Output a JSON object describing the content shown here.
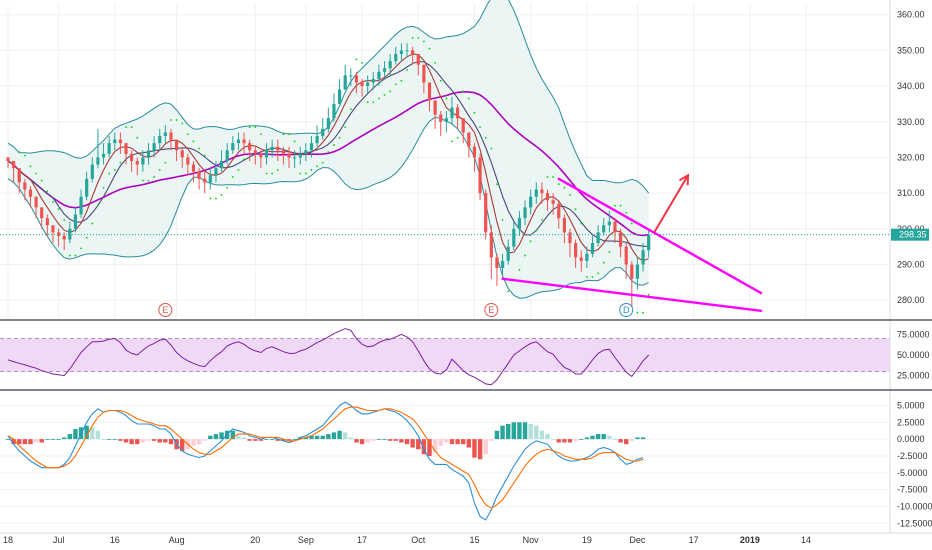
{
  "chart_data": [
    {
      "type": "candlestick",
      "panel": "price",
      "y_ticks": [
        "360.00",
        "350.00",
        "340.00",
        "330.00",
        "320.00",
        "310.00",
        "300.00",
        "290.00",
        "280.00"
      ],
      "ylim": [
        275,
        363
      ],
      "last_price_label": "298.35",
      "last_price": 298.35,
      "x_labels": [
        "18",
        "Jul",
        "16",
        "Aug",
        "20",
        "Sep",
        "17",
        "Oct",
        "15",
        "Nov",
        "19",
        "Dec",
        "17",
        "2019",
        "14"
      ],
      "x_label_day_index": [
        0,
        9,
        19,
        30,
        44,
        53,
        63,
        73,
        83,
        93,
        103,
        112,
        122,
        132,
        142
      ],
      "close": [
        319.0,
        317.0,
        313.0,
        311.0,
        309.0,
        306.0,
        303.0,
        301.0,
        299.0,
        298.0,
        297.0,
        300.0,
        304.0,
        309.0,
        314.0,
        318.0,
        320.0,
        321.0,
        324.0,
        325.0,
        324.0,
        321.0,
        319.0,
        318.0,
        320.0,
        322.0,
        324.0,
        326.0,
        327.0,
        325.0,
        322.0,
        320.0,
        318.0,
        316.0,
        314.0,
        313.0,
        315.0,
        317.0,
        319.0,
        322.0,
        324.0,
        325.0,
        324.0,
        322.0,
        321.0,
        320.0,
        322.0,
        323.0,
        322.0,
        321.0,
        320.0,
        320.0,
        321.0,
        322.0,
        324.0,
        326.0,
        328.0,
        331.0,
        335.0,
        339.0,
        343.0,
        343.0,
        341.0,
        340.0,
        341.0,
        342.0,
        344.0,
        345.0,
        347.0,
        349.0,
        350.0,
        350.0,
        349.0,
        346.0,
        341.0,
        336.0,
        332.0,
        330.0,
        331.0,
        334.0,
        331.0,
        327.0,
        323.0,
        320.0,
        310.0,
        299.0,
        292.0,
        289.0,
        291.0,
        295.0,
        300.0,
        303.0,
        306.0,
        309.0,
        311.0,
        310.0,
        308.0,
        307.0,
        303.0,
        299.0,
        296.0,
        292.0,
        291.0,
        293.0,
        296.0,
        299.0,
        301.0,
        302.0,
        299.0,
        295.0,
        290.0,
        286.0,
        290.0,
        294.0,
        298.35
      ],
      "high": [
        320.0,
        319.0,
        316.0,
        314.0,
        312.0,
        309.0,
        306.0,
        304.0,
        301.0,
        300.0,
        299.0,
        302.0,
        306.0,
        311.0,
        316.0,
        320.0,
        328.0,
        324.0,
        326.0,
        327.0,
        327.0,
        324.0,
        322.0,
        320.0,
        322.0,
        324.0,
        326.0,
        328.0,
        329.0,
        328.0,
        325.0,
        323.0,
        321.0,
        319.0,
        317.0,
        316.0,
        317.0,
        319.0,
        322.0,
        324.0,
        326.0,
        327.0,
        327.0,
        325.0,
        323.0,
        322.0,
        324.0,
        325.0,
        325.0,
        323.0,
        323.0,
        322.0,
        323.0,
        324.0,
        326.0,
        329.0,
        331.0,
        334.0,
        338.0,
        342.0,
        346.0,
        345.0,
        344.0,
        342.0,
        343.0,
        344.0,
        346.0,
        347.0,
        349.0,
        351.0,
        352.0,
        352.0,
        351.0,
        349.0,
        345.0,
        340.0,
        335.0,
        333.0,
        333.0,
        337.0,
        335.0,
        331.0,
        327.0,
        324.0,
        321.0,
        311.0,
        301.0,
        293.0,
        293.0,
        297.0,
        302.0,
        305.0,
        308.0,
        311.0,
        313.0,
        313.0,
        311.0,
        310.0,
        308.0,
        304.0,
        300.0,
        297.0,
        294.0,
        295.0,
        298.0,
        301.0,
        303.0,
        305.0,
        303.0,
        300.0,
        296.0,
        291.0,
        292.0,
        296.0,
        300.0
      ],
      "low": [
        317.0,
        313.0,
        310.0,
        308.0,
        306.0,
        303.0,
        300.0,
        298.0,
        296.0,
        295.0,
        294.0,
        296.0,
        299.0,
        303.0,
        308.0,
        313.0,
        317.0,
        318.0,
        320.0,
        322.0,
        321.0,
        318.0,
        316.0,
        315.0,
        316.0,
        318.0,
        320.0,
        322.0,
        324.0,
        322.0,
        319.0,
        317.0,
        315.0,
        313.0,
        311.0,
        310.0,
        311.0,
        313.0,
        316.0,
        318.0,
        321.0,
        322.0,
        321.0,
        319.0,
        318.0,
        317.0,
        318.0,
        320.0,
        319.0,
        318.0,
        317.0,
        317.0,
        318.0,
        319.0,
        320.0,
        323.0,
        325.0,
        327.0,
        330.0,
        335.0,
        339.0,
        340.0,
        338.0,
        337.0,
        338.0,
        339.0,
        340.0,
        342.0,
        343.0,
        346.0,
        347.0,
        348.0,
        346.0,
        343.0,
        338.0,
        333.0,
        328.0,
        326.0,
        327.0,
        329.0,
        328.0,
        324.0,
        320.0,
        316.0,
        308.0,
        297.0,
        286.0,
        284.0,
        287.0,
        290.0,
        294.0,
        298.0,
        301.0,
        304.0,
        307.0,
        307.0,
        305.0,
        304.0,
        300.0,
        296.0,
        292.0,
        289.0,
        288.0,
        289.0,
        292.0,
        295.0,
        298.0,
        299.0,
        296.0,
        292.0,
        286.0,
        278.0,
        283.0,
        288.0,
        292.0
      ],
      "open_first": 320.0,
      "events": [
        {
          "label": "E",
          "day": 28,
          "color": "#e0564f"
        },
        {
          "label": "E",
          "day": 86,
          "color": "#e0564f"
        },
        {
          "label": "D",
          "day": 110,
          "color": "#2f8fd0"
        }
      ],
      "trendlines": [
        {
          "color": "#ff00ff",
          "p1": {
            "day": 98,
            "price": 314
          },
          "p2": {
            "day": 134,
            "price": 282
          }
        },
        {
          "color": "#ff00ff",
          "p1": {
            "day": 88,
            "price": 286
          },
          "p2": {
            "day": 134,
            "price": 277
          }
        }
      ],
      "arrow": {
        "color": "#f23645",
        "p1": {
          "day": 115,
          "price": 299
        },
        "p2": {
          "day": 121,
          "price": 315
        }
      },
      "colors": {
        "up": "#26a69a",
        "down": "#ef5350",
        "band": "#2a8c9c",
        "band_fill": "#e6f4f1",
        "ma_slow": "#b000c0",
        "ma_fast": "#a83a3a",
        "ma_mid": "#4a4a7a",
        "psar": "#00d400",
        "last_price_bg": "#26a69a"
      }
    },
    {
      "type": "line",
      "panel": "rsi",
      "y_ticks": [
        "75.0000",
        "50.0000",
        "25.0000"
      ],
      "ylim": [
        10,
        90
      ],
      "bands": [
        30,
        70
      ],
      "values": [
        44,
        42,
        40,
        38,
        36,
        34,
        31,
        29,
        27,
        26,
        25,
        33,
        43,
        53,
        60,
        66,
        66,
        67,
        69,
        70,
        65,
        56,
        52,
        50,
        56,
        61,
        64,
        68,
        69,
        62,
        53,
        47,
        43,
        40,
        37,
        36,
        43,
        49,
        54,
        61,
        64,
        66,
        63,
        58,
        55,
        53,
        58,
        60,
        57,
        54,
        52,
        52,
        55,
        57,
        61,
        65,
        68,
        72,
        76,
        79,
        82,
        80,
        70,
        63,
        60,
        61,
        65,
        68,
        69,
        72,
        75,
        72,
        66,
        55,
        43,
        33,
        28,
        27,
        32,
        45,
        38,
        31,
        26,
        23,
        19,
        15,
        14,
        20,
        30,
        40,
        50,
        55,
        60,
        64,
        66,
        60,
        54,
        51,
        42,
        35,
        32,
        27,
        27,
        35,
        44,
        52,
        56,
        57,
        47,
        38,
        29,
        24,
        33,
        43,
        50
      ],
      "colors": {
        "line": "#7e1fa0",
        "band_fill": "#efd9f7"
      }
    },
    {
      "type": "macd",
      "panel": "macd",
      "y_ticks": [
        "5.0000",
        "2.5000",
        "0.0000",
        "-2.5000",
        "-5.0000",
        "-7.5000",
        "-10.0000",
        "-12.5000"
      ],
      "ylim": [
        -13.5,
        7
      ],
      "macd": [
        0.5,
        -0.75,
        -1.75,
        -2.5,
        -3.25,
        -3.75,
        -4.25,
        -4.25,
        -4.25,
        -4.25,
        -3.75,
        -2.75,
        -1.0,
        0.75,
        2.5,
        3.75,
        4.5,
        4.0,
        4.25,
        4.25,
        4.0,
        3.5,
        2.75,
        2.25,
        2.25,
        2.25,
        2.0,
        1.5,
        1.5,
        0.75,
        -0.75,
        -1.75,
        -2.25,
        -2.5,
        -2.75,
        -2.5,
        -1.75,
        -1.0,
        -0.25,
        0.75,
        1.5,
        1.25,
        1.0,
        0.5,
        0.25,
        0.0,
        0.25,
        0.25,
        0.0,
        -0.25,
        -0.5,
        -0.25,
        0.25,
        0.5,
        1.0,
        1.5,
        2.0,
        3.0,
        4.0,
        5.0,
        5.5,
        5.0,
        4.25,
        3.75,
        3.75,
        4.0,
        4.25,
        4.5,
        4.25,
        4.0,
        3.5,
        2.75,
        1.75,
        0.5,
        -1.5,
        -3.0,
        -3.75,
        -3.75,
        -3.75,
        -4.5,
        -5.0,
        -5.5,
        -6.5,
        -9.5,
        -11.5,
        -12.0,
        -10.5,
        -8.5,
        -7.0,
        -5.5,
        -4.0,
        -2.75,
        -1.5,
        -0.75,
        -0.25,
        -0.5,
        -0.75,
        -1.75,
        -2.5,
        -3.0,
        -3.25,
        -3.25,
        -3.0,
        -2.75,
        -2.25,
        -1.5,
        -1.25,
        -1.5,
        -2.0,
        -3.0,
        -3.75,
        -3.5,
        -3.0,
        -2.75
      ],
      "signal": [
        0.5,
        0.0,
        -1.0,
        -1.75,
        -2.5,
        -3.25,
        -3.75,
        -4.25,
        -4.25,
        -4.25,
        -4.0,
        -3.5,
        -2.5,
        -1.0,
        0.5,
        2.0,
        3.25,
        4.0,
        4.25,
        4.25,
        4.25,
        4.0,
        3.5,
        3.0,
        2.75,
        2.5,
        2.25,
        2.0,
        2.0,
        1.5,
        0.75,
        0.0,
        -0.75,
        -1.5,
        -2.0,
        -2.25,
        -2.25,
        -1.75,
        -1.25,
        -0.5,
        0.25,
        0.75,
        0.75,
        0.75,
        0.5,
        0.25,
        0.25,
        0.25,
        0.25,
        0.0,
        -0.25,
        -0.25,
        0.0,
        0.25,
        0.5,
        1.0,
        1.5,
        2.25,
        3.0,
        3.75,
        4.5,
        4.75,
        4.75,
        4.5,
        4.25,
        4.25,
        4.25,
        4.5,
        4.5,
        4.25,
        4.0,
        3.5,
        3.0,
        2.0,
        0.75,
        -0.5,
        -1.75,
        -2.75,
        -3.25,
        -3.75,
        -4.25,
        -4.75,
        -5.25,
        -6.75,
        -8.5,
        -9.75,
        -10.25,
        -9.75,
        -9.0,
        -7.75,
        -6.5,
        -5.25,
        -4.0,
        -3.0,
        -2.25,
        -1.75,
        -1.5,
        -1.75,
        -2.0,
        -2.5,
        -2.75,
        -3.0,
        -3.0,
        -3.0,
        -2.75,
        -2.25,
        -2.0,
        -2.0,
        -2.0,
        -2.5,
        -3.0,
        -3.25,
        -3.25,
        -3.0
      ],
      "colors": {
        "macd": "#2b8fd6",
        "signal": "#ff6d00",
        "hist_up_strong": "#26a69a",
        "hist_up_weak": "#b2dfdb",
        "hist_down_strong": "#ef5350",
        "hist_down_weak": "#ffcdd2"
      }
    }
  ]
}
